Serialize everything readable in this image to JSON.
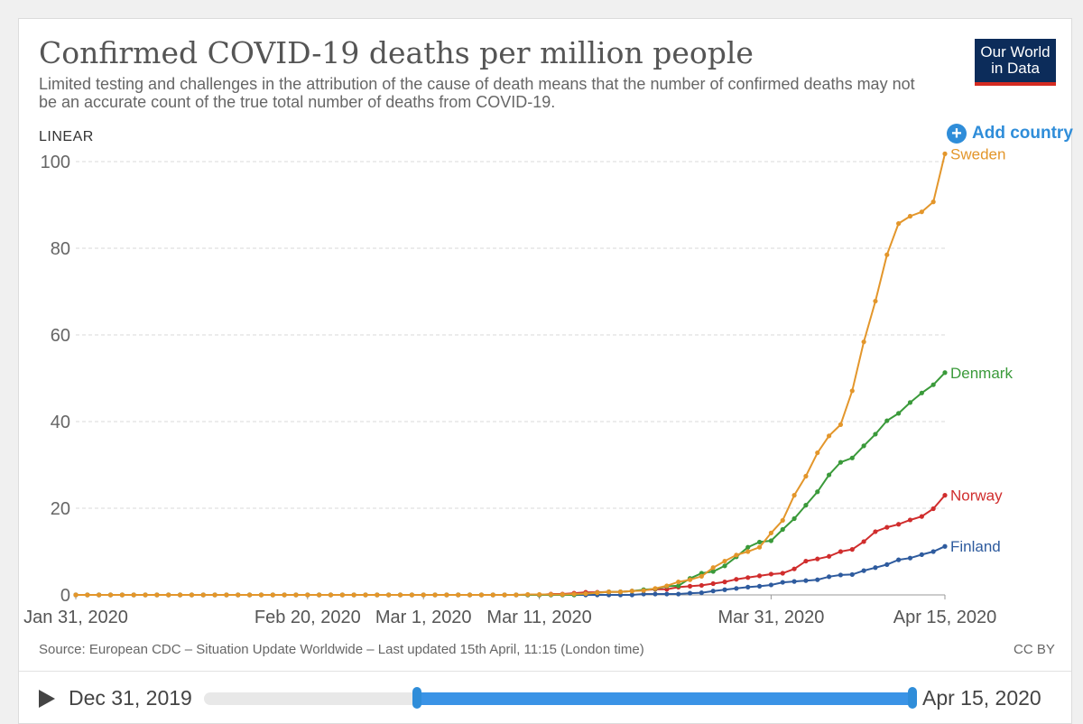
{
  "header": {
    "title": "Confirmed COVID-19 deaths per million people",
    "subtitle": "Limited testing and challenges in the attribution of the cause of death means that the number of confirmed deaths may not be an accurate count of the true total number of deaths from COVID-19.",
    "logo_line1": "Our World",
    "logo_line2": "in Data",
    "scale_label": "LINEAR",
    "add_country_label": "Add country"
  },
  "footer": {
    "source": "Source: European CDC – Situation Update Worldwide – Last updated 15th April, 11:15 (London time)",
    "license": "CC BY"
  },
  "timeline": {
    "start_label": "Dec 31, 2019",
    "end_label": "Apr 15, 2020",
    "range_start_fraction": 0.3,
    "range_end_fraction": 1.0
  },
  "chart_data": {
    "type": "line",
    "title": "Confirmed COVID-19 deaths per million people",
    "ylim": [
      0,
      100
    ],
    "yticks": [
      0,
      20,
      40,
      60,
      80,
      100
    ],
    "xrange": [
      "2020-01-31",
      "2020-04-15"
    ],
    "xticks": [
      {
        "date": "2020-01-31",
        "label": "Jan 31, 2020"
      },
      {
        "date": "2020-02-20",
        "label": "Feb 20, 2020"
      },
      {
        "date": "2020-03-01",
        "label": "Mar 1, 2020"
      },
      {
        "date": "2020-03-11",
        "label": "Mar 11, 2020"
      },
      {
        "date": "2020-03-31",
        "label": "Mar 31, 2020"
      },
      {
        "date": "2020-04-15",
        "label": "Apr 15, 2020"
      }
    ],
    "grid": true,
    "start_date": "2020-03-14",
    "series": [
      {
        "name": "Sweden",
        "color": "#e3962b",
        "values": [
          0.1,
          0.1,
          0.1,
          0.1,
          0.2,
          0.3,
          0.5,
          0.7,
          0.7,
          0.9,
          1.0,
          1.5,
          2.1,
          3.0,
          3.5,
          4.3,
          6.3,
          7.8,
          9.2,
          10.0,
          11.0,
          14.3,
          17.2,
          23.0,
          27.4,
          32.8,
          36.7,
          39.3,
          47.1,
          58.4,
          67.8,
          78.5,
          85.7,
          87.4,
          88.4,
          90.7,
          101.8
        ]
      },
      {
        "name": "Denmark",
        "color": "#3a9a3a",
        "values": [
          0.3,
          0.5,
          0.7,
          0.7,
          0.9,
          1.2,
          1.4,
          2.0,
          2.1,
          3.8,
          5.0,
          5.4,
          6.7,
          8.8,
          11.0,
          12.2,
          12.5,
          15.1,
          17.6,
          20.7,
          23.8,
          27.7,
          30.6,
          31.6,
          34.4,
          37.1,
          40.2,
          41.9,
          44.4,
          46.6,
          48.5,
          51.3
        ]
      },
      {
        "name": "Norway",
        "color": "#d02d2d",
        "values": [
          0.0,
          0.2,
          0.2,
          0.4,
          0.6,
          0.6,
          0.7,
          0.7,
          0.9,
          1.1,
          1.3,
          1.3,
          1.8,
          2.0,
          2.2,
          2.6,
          3.0,
          3.6,
          4.0,
          4.4,
          4.8,
          5.0,
          6.0,
          7.8,
          8.3,
          8.9,
          10.0,
          10.5,
          12.3,
          14.6,
          15.6,
          16.3,
          17.3,
          18.1,
          19.9,
          23.0
        ]
      },
      {
        "name": "Finland",
        "color": "#2e5b9e",
        "values": [
          0.0,
          0.0,
          0.0,
          0.0,
          0.0,
          0.0,
          0.0,
          0.0,
          0.0,
          0.2,
          0.2,
          0.2,
          0.2,
          0.4,
          0.5,
          0.9,
          1.2,
          1.5,
          1.8,
          2.0,
          2.3,
          2.9,
          3.1,
          3.3,
          3.5,
          4.2,
          4.6,
          4.7,
          5.6,
          6.3,
          7.0,
          8.1,
          8.5,
          9.3,
          10.0,
          11.2
        ]
      }
    ]
  }
}
